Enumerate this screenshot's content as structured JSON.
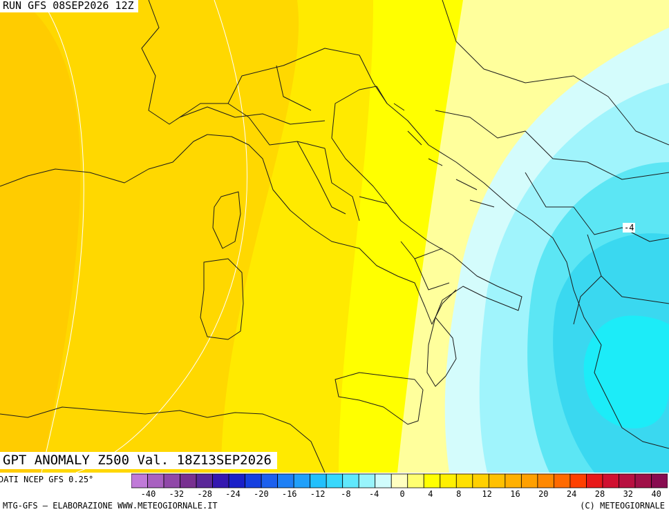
{
  "header": {
    "run": "RUN GFS 08SEP2026 12Z"
  },
  "title": "GPT ANOMALY Z500 Val. 18Z13SEP2026",
  "source": "DATI NCEP GFS 0.25°",
  "footer": {
    "left": "MTG-GFS — ELABORAZIONE WWW.METEOGIORNALE.IT",
    "right": "(C) METEOGIORNALE"
  },
  "contour_labels": [
    {
      "text": "-4"
    }
  ],
  "colorbar": {
    "ticks": [
      "-40",
      "-32",
      "-28",
      "-24",
      "-20",
      "-16",
      "-12",
      "-8",
      "-4",
      "0",
      "4",
      "8",
      "12",
      "16",
      "20",
      "24",
      "28",
      "32",
      "40"
    ],
    "colors": [
      "#c07ad8",
      "#a860c0",
      "#9048a8",
      "#783090",
      "#5a2898",
      "#3418b0",
      "#1a20c8",
      "#1640e0",
      "#1c60ee",
      "#1e80f6",
      "#20a0fa",
      "#22c0fc",
      "#38d8fc",
      "#60e8fc",
      "#98f4fc",
      "#d0fcfc",
      "#ffffc0",
      "#ffff70",
      "#ffff00",
      "#fff000",
      "#ffe000",
      "#ffd000",
      "#ffc000",
      "#ffb000",
      "#ffa000",
      "#ff8800",
      "#ff6a00",
      "#ff4000",
      "#e81818",
      "#d01030",
      "#b81040",
      "#a01048",
      "#880c50"
    ]
  },
  "map": {
    "field_colors": {
      "anom_16_20": "#ffcc00",
      "anom_12_16": "#ffd800",
      "anom_8_12": "#ffea00",
      "anom_4_8": "#ffff00",
      "anom_0_4": "#ffff9c",
      "anom_m4_0": "#d4fcfc",
      "anom_m8_m4": "#a0f4fc",
      "anom_m12_m8": "#5ce6f4",
      "anom_m16_m12": "#3ad8f0",
      "anom_m20_m16": "#1cecf8"
    }
  }
}
